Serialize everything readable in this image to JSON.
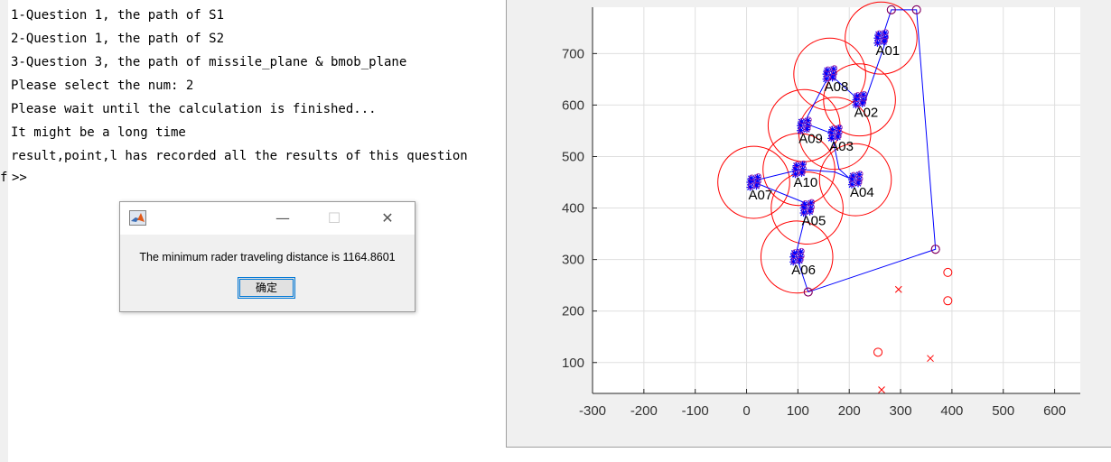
{
  "console": {
    "lines": [
      "1-Question 1, the path of S1",
      "2-Question 1, the path of S2",
      "3-Question 3, the path of missile_plane & bmob_plane",
      "Please select the num: 2",
      "Please wait until the calculation is finished...",
      "It might be a long time",
      "result,point,l has recorded all the results of this question"
    ],
    "prompt": ">>",
    "clipped_char": "f"
  },
  "dialog": {
    "message": "The minimum rader traveling distance is 1164.8601",
    "ok_label": "确定",
    "minimize_glyph": "—",
    "maximize_glyph": "☐",
    "close_glyph": "✕",
    "app_icon": "matlab-icon"
  },
  "chart_data": {
    "type": "scatter",
    "xlim": [
      -300,
      650
    ],
    "ylim": [
      40,
      790
    ],
    "xticks": [
      -300,
      -200,
      -100,
      0,
      100,
      200,
      300,
      400,
      500,
      600
    ],
    "yticks": [
      100,
      200,
      300,
      400,
      500,
      600,
      700
    ],
    "grid": true,
    "colors": {
      "path": "#0000ff",
      "circle": "#ff0000",
      "axis": "#262626",
      "grid": "#dfdfdf"
    },
    "stations": [
      {
        "name": "A01",
        "x": 262,
        "y": 730,
        "r": 70
      },
      {
        "name": "A02",
        "x": 220,
        "y": 610,
        "r": 70
      },
      {
        "name": "A03",
        "x": 172,
        "y": 545,
        "r": 70
      },
      {
        "name": "A04",
        "x": 212,
        "y": 455,
        "r": 70
      },
      {
        "name": "A05",
        "x": 118,
        "y": 400,
        "r": 70
      },
      {
        "name": "A06",
        "x": 98,
        "y": 305,
        "r": 70
      },
      {
        "name": "A07",
        "x": 14,
        "y": 450,
        "r": 70
      },
      {
        "name": "A08",
        "x": 162,
        "y": 660,
        "r": 70
      },
      {
        "name": "A09",
        "x": 112,
        "y": 560,
        "r": 70
      },
      {
        "name": "A10",
        "x": 102,
        "y": 475,
        "r": 70
      }
    ],
    "route": [
      [
        120,
        237
      ],
      [
        96,
        310
      ],
      [
        116,
        390
      ],
      [
        114,
        410
      ],
      [
        10,
        452
      ],
      [
        105,
        475
      ],
      [
        172,
        470
      ],
      [
        200,
        458
      ],
      [
        180,
        476
      ],
      [
        166,
        545
      ],
      [
        112,
        565
      ],
      [
        162,
        660
      ],
      [
        213,
        615
      ],
      [
        230,
        605
      ],
      [
        275,
        735
      ],
      [
        264,
        730
      ],
      [
        282,
        785
      ],
      [
        331,
        785
      ],
      [
        368,
        320
      ],
      [
        120,
        237
      ]
    ],
    "circle_markers": [
      [
        120,
        237
      ],
      [
        282,
        785
      ],
      [
        331,
        785
      ],
      [
        368,
        320
      ],
      [
        392,
        275
      ],
      [
        392,
        220
      ],
      [
        256,
        120
      ]
    ],
    "x_markers": [
      [
        296,
        242
      ],
      [
        358,
        108
      ],
      [
        263,
        47
      ]
    ]
  }
}
